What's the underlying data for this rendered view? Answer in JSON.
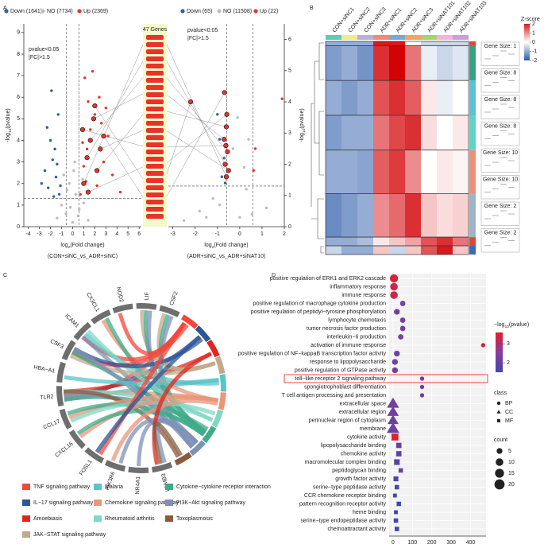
{
  "panel_labels": [
    "A",
    "B",
    "C",
    "D"
  ],
  "chart_data": [
    {
      "type": "scatter",
      "yaxis_side": "left",
      "xlabel": [
        "log",
        "2",
        "(Fold change)"
      ],
      "subtitle": "(CON+siNC_vs_ADR+siNC)",
      "ylabel": [
        "-log",
        "10",
        "(pvalue)"
      ],
      "xlim": [
        -4.4,
        6.2
      ],
      "ylim": [
        0,
        9.4
      ],
      "xticks": [
        -4,
        -3,
        -2,
        -1,
        0,
        1,
        2,
        3,
        4,
        5,
        6
      ],
      "yticks": [
        0,
        1,
        2,
        3,
        4,
        5,
        6,
        7,
        8,
        9
      ],
      "thresholds_x": [
        -0.585,
        0.585
      ],
      "threshold_y": 1.301,
      "annotations": [
        "pvalue<0.05",
        "|FC|>1.5"
      ],
      "gene_box": "47 Genes",
      "series": [
        {
          "name": "Down (1641)",
          "color": "#2e5ea8",
          "x": [
            -1.2,
            -1.5,
            -1.8,
            -2.0,
            -2.2,
            -2.5,
            -1.3,
            -1.6,
            -2.8,
            -1.9,
            -1.1,
            -2.3,
            -1.4,
            -1.7
          ],
          "y": [
            1.5,
            2.3,
            3.1,
            4.0,
            1.8,
            2.6,
            5.2,
            3.6,
            2.0,
            6.3,
            1.9,
            4.6,
            2.9,
            1.4
          ]
        },
        {
          "name": "NO (7734)",
          "color": "#bdbdbd",
          "x": [
            -1.4,
            -1.0,
            -0.6,
            -0.3,
            0,
            0.3,
            0.6,
            1.0,
            1.4,
            -0.8,
            0.2,
            0.9,
            -0.2,
            0.5,
            -0.5,
            0.1
          ],
          "y": [
            0.4,
            1.0,
            0.6,
            2.0,
            0.2,
            1.5,
            0.8,
            1.1,
            0.3,
            2.4,
            3.0,
            2.2,
            0.9,
            0.5,
            1.7,
            2.6
          ]
        },
        {
          "name": "Up (2369)",
          "color": "#e8322a",
          "x": [
            0.7,
            1.0,
            1.3,
            1.6,
            2.0,
            2.4,
            2.8,
            3.2,
            3.6,
            1.1,
            1.8,
            2.2,
            4.3,
            1.4,
            0.9,
            2.6,
            3.0,
            1.2
          ],
          "y": [
            1.5,
            2.8,
            3.6,
            4.5,
            5.2,
            6.0,
            3.0,
            4.2,
            2.4,
            6.9,
            7.2,
            1.9,
            1.6,
            5.8,
            3.9,
            4.8,
            5.5,
            2.1
          ]
        }
      ],
      "highlighted": {
        "color": "#e8322a",
        "x": [
          1.0,
          1.3,
          1.6,
          1.9,
          2.2,
          2.5,
          0.9,
          1.4,
          2.0,
          2.8
        ],
        "y": [
          2.0,
          3.2,
          4.0,
          5.0,
          2.6,
          3.6,
          4.5,
          1.6,
          5.6,
          4.2
        ]
      }
    },
    {
      "type": "scatter",
      "yaxis_side": "right",
      "xlabel": [
        "log",
        "2",
        "(Fold change)"
      ],
      "subtitle": "(ADR+siNC_vs_ADR+siNAT10)",
      "ylabel": [
        "-log",
        "10",
        "(pvalue)"
      ],
      "xlim": [
        -3.2,
        2.0
      ],
      "ylim": [
        0,
        6.5
      ],
      "xticks": [
        -3,
        -2,
        -1,
        0,
        1,
        2
      ],
      "yticks": [
        0,
        1,
        2,
        3,
        4,
        5,
        6
      ],
      "thresholds_x": [
        -0.585,
        0.585
      ],
      "threshold_y": 1.301,
      "annotations": [
        "pvalue<0.05",
        "|FC|>1.5"
      ],
      "series": [
        {
          "name": "Down (65)",
          "color": "#2e5ea8",
          "x": [
            -0.8,
            -0.7,
            -1.0,
            -0.9,
            -0.65
          ],
          "y": [
            1.6,
            2.2,
            3.6,
            2.8,
            1.4
          ]
        },
        {
          "name": "NO (11508)",
          "color": "#bdbdbd",
          "x": [
            -2.5,
            -1.8,
            -1.2,
            -0.6,
            -0.3,
            0,
            0.3,
            0.55,
            -0.9,
            -0.1,
            0.4,
            1.2,
            -1.5,
            0.2
          ],
          "y": [
            0.2,
            0.5,
            0.9,
            1.5,
            2.5,
            0.3,
            1.2,
            0.4,
            0.7,
            3.5,
            2.8,
            0.6,
            0.3,
            1.9
          ]
        },
        {
          "name": "Up (22)",
          "color": "#e8322a",
          "x": [
            0.62,
            0.7,
            1.9
          ],
          "y": [
            1.8,
            2.5,
            4.1
          ]
        }
      ],
      "highlighted": {
        "color": "#e8322a",
        "x": [
          -0.6,
          -0.65,
          -0.55,
          -0.7,
          -0.6,
          -0.5,
          -0.62,
          -0.58,
          -2.2,
          -0.68
        ],
        "y": [
          1.6,
          2.0,
          2.4,
          2.8,
          3.2,
          1.8,
          2.6,
          3.6,
          4.0,
          4.3
        ]
      }
    },
    {
      "type": "heatmap",
      "columns": [
        "CON+siNC1",
        "CON+siNC2",
        "CON+siNC3",
        "ADR+siNC1",
        "ADR+siNC2",
        "ADR+siNC3",
        "ADR+siNAT101",
        "ADR+siNAT102",
        "ADR+siNAT103"
      ],
      "column_colors": [
        "#5fc9b8",
        "#f3ea8c",
        "#b7b1da",
        "#f08a7a",
        "#7aa7d6",
        "#f5a55c",
        "#a6d36a",
        "#f2b6d6",
        "#c8a0d8"
      ],
      "zlim": [
        -2,
        2
      ],
      "zticks": [
        2,
        1,
        0,
        -1,
        -2
      ],
      "zlabel": "Z-score",
      "clusters": [
        {
          "label": "Gene Size: 1",
          "size": 1,
          "color": "#e8413a",
          "values": [
            -1,
            -1,
            -1,
            2,
            2,
            0,
            -0.5,
            -0.5,
            -0.5
          ]
        },
        {
          "label": "Gene Size: 8",
          "size": 8,
          "color": "#35a37f",
          "values": [
            -1.2,
            -1,
            -1.3,
            1.8,
            2.2,
            1.2,
            -0.2,
            -0.5,
            -0.3
          ]
        },
        {
          "label": "Gene Size: 8",
          "size": 8,
          "color": "#5bc0d8",
          "values": [
            -1,
            -1.2,
            -1,
            1.5,
            1.8,
            1.4,
            0.2,
            -0.2,
            0
          ]
        },
        {
          "label": "Gene Size: 8",
          "size": 8,
          "color": "#5fd3c8",
          "values": [
            -1.2,
            -1,
            -1,
            1.2,
            1.6,
            1.8,
            0.3,
            0,
            0.2
          ]
        },
        {
          "label": "Gene Size: 10",
          "size": 10,
          "color": "#ef8f7a",
          "values": [
            -1,
            -1,
            -1.1,
            1.4,
            1.7,
            1.0,
            0,
            0.2,
            0.1
          ]
        },
        {
          "label": "Gene Size: 10",
          "size": 10,
          "color": "#9fb4c8",
          "values": [
            -1.4,
            -1.2,
            -1,
            1.0,
            1.3,
            1.8,
            0.5,
            0.3,
            0.4
          ]
        },
        {
          "label": "Gene Size: 2",
          "size": 2,
          "color": "#e8413a",
          "values": [
            -1,
            -1,
            -0.8,
            0.2,
            0.5,
            0.8,
            1.5,
            1.8,
            1.2
          ]
        },
        {
          "label": "Gene Size: 2",
          "size": 2,
          "color": "#3a6bb4",
          "values": [
            -0.5,
            -1,
            -1,
            0.5,
            -0.5,
            0.5,
            1.5,
            2,
            0.5
          ]
        }
      ]
    },
    {
      "type": "chord",
      "genes": [
        "CSF2",
        "LIF",
        "NOD2",
        "CX3CL1",
        "ICAM1",
        "CSF3",
        "HBA−A1",
        "TLR2",
        "CCL17",
        "CXCL16",
        "FOSL1",
        "PIK3R6",
        "NR4A1",
        "LAMB3"
      ],
      "pathways": [
        {
          "name": "TNF signaling pathway",
          "color": "#f4473a"
        },
        {
          "name": "IL−17 signaling pathway",
          "color": "#2f5597"
        },
        {
          "name": "Amoebiasis",
          "color": "#e0261f"
        },
        {
          "name": "JAK−STAT signaling pathway",
          "color": "#c2a98c"
        },
        {
          "name": "Malaria",
          "color": "#5bc4c9"
        },
        {
          "name": "Chemokine signaling pathway",
          "color": "#e9967a"
        },
        {
          "name": "Rheumatoid arthritis",
          "color": "#7fd8c4"
        },
        {
          "name": "Cytokine−cytokine receptor interaction",
          "color": "#3fab8a"
        },
        {
          "name": "PI3K−Akt signaling pathway",
          "color": "#8091b8"
        },
        {
          "name": "Toxoplasmosis",
          "color": "#8b5a3c"
        }
      ],
      "links": [
        [
          7,
          0
        ],
        [
          7,
          1
        ],
        [
          7,
          2
        ],
        [
          7,
          4
        ],
        [
          7,
          5
        ],
        [
          7,
          6
        ],
        [
          7,
          7
        ],
        [
          7,
          8
        ],
        [
          7,
          9
        ],
        [
          0,
          3
        ],
        [
          0,
          7
        ],
        [
          0,
          8
        ],
        [
          1,
          3
        ],
        [
          1,
          7
        ],
        [
          1,
          8
        ],
        [
          2,
          0
        ],
        [
          3,
          5
        ],
        [
          3,
          7
        ],
        [
          4,
          0
        ],
        [
          4,
          4
        ],
        [
          4,
          6
        ],
        [
          4,
          8
        ],
        [
          5,
          0
        ],
        [
          5,
          1
        ],
        [
          5,
          3
        ],
        [
          5,
          7
        ],
        [
          5,
          8
        ],
        [
          6,
          4
        ],
        [
          8,
          5
        ],
        [
          8,
          7
        ],
        [
          8,
          6
        ],
        [
          9,
          5
        ],
        [
          9,
          7
        ],
        [
          10,
          0
        ],
        [
          10,
          1
        ],
        [
          11,
          5
        ],
        [
          11,
          8
        ],
        [
          12,
          8
        ],
        [
          13,
          2
        ],
        [
          13,
          8
        ],
        [
          13,
          9
        ]
      ]
    },
    {
      "type": "bubble",
      "categories": [
        "positive regulation of ERK1 and ERK2 cascade",
        "inflammatory response",
        "immune response",
        "positive regulation of macrophage cytokine production",
        "positive regulation of peptidyl−tyrosine phosphorylation",
        "lymphocyte chemotaxis",
        "tumor necrosis factor production",
        "interleukin−6 production",
        "activation of immune response",
        "positive regulation of NF−kappaB transcription factor activity",
        "response to lipopolysaccharide",
        "positive regulation of GTPase activity",
        "toll−like receptor 2 signaling pathway",
        "spongiotrophoblast differentiation",
        "T cell antigen processing and presentation",
        "extracellular space",
        "extracellular region",
        "perinuclear region of cytoplasm",
        "membrane",
        "cytokine activity",
        "lipopolysaccharide binding",
        "chemokine activity",
        "macromolecular complex binding",
        "peptidoglycan binding",
        "growth factor activity",
        "serine−type peptidase activity",
        "CCR chemokine receptor binding",
        "pattern recognition receptor activity",
        "heme binding",
        "serine−type endopeptidase activity",
        "chemoattractant activity"
      ],
      "values": [
        5,
        5,
        5,
        50,
        20,
        50,
        50,
        40,
        465,
        20,
        10,
        10,
        150,
        150,
        150,
        0,
        0,
        0,
        0,
        10,
        30,
        30,
        20,
        40,
        15,
        20,
        10,
        30,
        15,
        15,
        20
      ],
      "sizes": [
        12,
        10,
        10,
        4,
        5,
        4,
        4,
        4,
        2,
        5,
        5,
        5,
        2,
        2,
        2,
        20,
        18,
        16,
        22,
        10,
        5,
        5,
        6,
        3,
        4,
        3,
        2,
        3,
        2,
        3,
        3
      ],
      "color_values": [
        3.5,
        3.3,
        3.3,
        2.3,
        2.2,
        2.3,
        2.3,
        2.3,
        3.5,
        2.2,
        2.2,
        2.2,
        2.1,
        2.1,
        2.1,
        2.2,
        2.2,
        2.1,
        2.1,
        3.6,
        2.0,
        1.9,
        1.8,
        2.1,
        1.7,
        1.6,
        1.6,
        1.5,
        1.5,
        1.5,
        1.6
      ],
      "class_of": [
        0,
        0,
        0,
        0,
        0,
        0,
        0,
        0,
        0,
        0,
        0,
        0,
        0,
        0,
        0,
        1,
        1,
        1,
        1,
        2,
        2,
        2,
        2,
        2,
        2,
        2,
        2,
        2,
        2,
        2,
        2
      ],
      "highlight_row": 12,
      "xlim": [
        -20,
        480
      ],
      "xticks": [
        0,
        100,
        200,
        300,
        400
      ],
      "color_title": [
        "−log",
        "10",
        "(pvalue)"
      ],
      "clim": [
        1.5,
        3.6
      ],
      "cticks": [
        3,
        2
      ],
      "colors": [
        "#3f48a8",
        "#8a3c9c",
        "#e0202a"
      ],
      "class_title": "class",
      "classes": [
        "BP",
        "CC",
        "MF"
      ],
      "count_title": "count",
      "count_ticks": [
        5,
        10,
        15,
        20
      ]
    }
  ]
}
